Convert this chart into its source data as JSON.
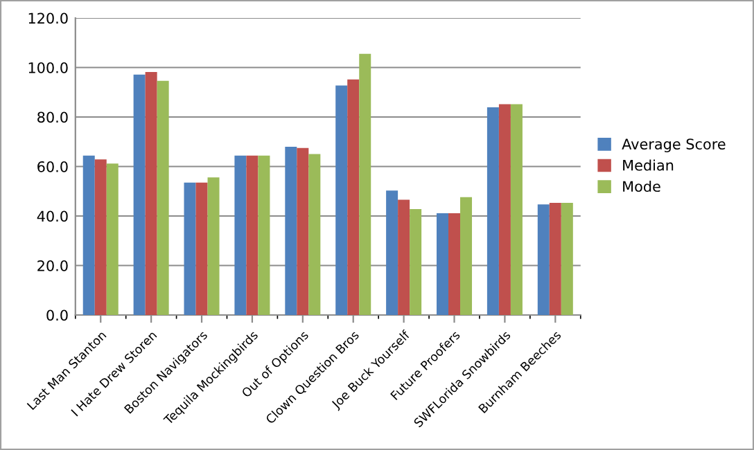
{
  "chart_data": {
    "type": "bar",
    "categories": [
      "Last Man Stanton",
      "I Hate Drew Storen",
      "Boston Navigators",
      "Tequila Mockingbirds",
      "Out of Options",
      "Clown Question Bros",
      "Joe Buck Yourself",
      "Future Proofers",
      "SWFLorida Snowbirds",
      "Burnham Beeches"
    ],
    "series": [
      {
        "name": "Average Score",
        "color": "#4f81bd",
        "values": [
          64.4,
          97.1,
          53.5,
          64.4,
          68.0,
          92.7,
          50.3,
          41.1,
          83.9,
          44.7
        ]
      },
      {
        "name": "Median",
        "color": "#c0504d",
        "values": [
          62.9,
          98.2,
          53.5,
          64.4,
          67.5,
          95.2,
          46.6,
          41.1,
          85.2,
          45.3
        ]
      },
      {
        "name": "Mode",
        "color": "#9bbb59",
        "values": [
          61.2,
          94.6,
          55.6,
          64.4,
          65.0,
          105.5,
          42.8,
          47.6,
          85.2,
          45.3
        ]
      }
    ],
    "ylim": [
      0,
      120
    ],
    "yticks": [
      {
        "value": 0,
        "label": "0.0"
      },
      {
        "value": 20,
        "label": "20.0"
      },
      {
        "value": 40,
        "label": "40.0"
      },
      {
        "value": 60,
        "label": "60.0"
      },
      {
        "value": 80,
        "label": "80.0"
      },
      {
        "value": 100,
        "label": "100.0"
      },
      {
        "value": 120,
        "label": "120.0"
      }
    ],
    "grid": "y",
    "legend": "right"
  }
}
